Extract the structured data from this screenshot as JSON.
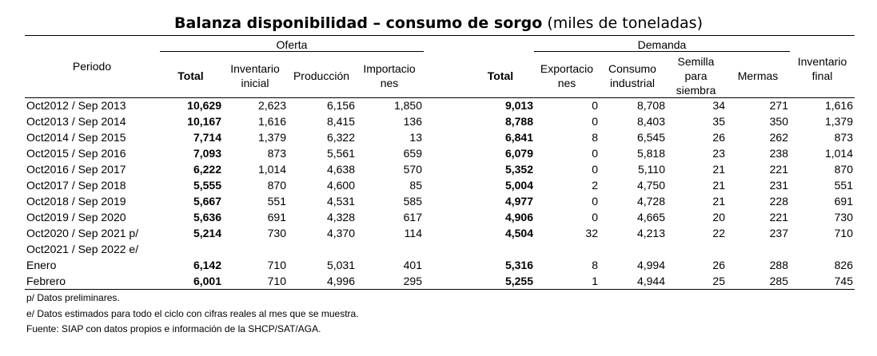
{
  "title": {
    "main": "Balanza disponibilidad – consumo de sorgo",
    "unit": "(miles de toneladas)"
  },
  "groups": {
    "oferta": "Oferta",
    "demanda": "Demanda"
  },
  "headers": {
    "periodo": "Periodo",
    "total": "Total",
    "inventario_inicial": [
      "Inventario",
      "inicial"
    ],
    "produccion": "Producción",
    "importaciones": [
      "Importacio",
      "nes"
    ],
    "total_d": "Total",
    "exportaciones": [
      "Exportacio",
      "nes"
    ],
    "consumo_industrial": [
      "Consumo",
      "industrial"
    ],
    "semilla": [
      "Semilla",
      "para",
      "siembra"
    ],
    "mermas": "Mermas",
    "inventario_final": [
      "Inventario",
      "final"
    ]
  },
  "rows": [
    {
      "periodo": "Oct2012 / Sep 2013",
      "total_oferta": "10,629",
      "inv_inicial": "2,623",
      "produccion": "6,156",
      "importaciones": "1,850",
      "total_demanda": "9,013",
      "exportaciones": "0",
      "consumo": "8,708",
      "semilla": "34",
      "mermas": "271",
      "inv_final": "1,616"
    },
    {
      "periodo": "Oct2013 / Sep 2014",
      "total_oferta": "10,167",
      "inv_inicial": "1,616",
      "produccion": "8,415",
      "importaciones": "136",
      "total_demanda": "8,788",
      "exportaciones": "0",
      "consumo": "8,403",
      "semilla": "35",
      "mermas": "350",
      "inv_final": "1,379"
    },
    {
      "periodo": "Oct2014 / Sep 2015",
      "total_oferta": "7,714",
      "inv_inicial": "1,379",
      "produccion": "6,322",
      "importaciones": "13",
      "total_demanda": "6,841",
      "exportaciones": "8",
      "consumo": "6,545",
      "semilla": "26",
      "mermas": "262",
      "inv_final": "873"
    },
    {
      "periodo": "Oct2015 / Sep 2016",
      "total_oferta": "7,093",
      "inv_inicial": "873",
      "produccion": "5,561",
      "importaciones": "659",
      "total_demanda": "6,079",
      "exportaciones": "0",
      "consumo": "5,818",
      "semilla": "23",
      "mermas": "238",
      "inv_final": "1,014"
    },
    {
      "periodo": "Oct2016 / Sep 2017",
      "total_oferta": "6,222",
      "inv_inicial": "1,014",
      "produccion": "4,638",
      "importaciones": "570",
      "total_demanda": "5,352",
      "exportaciones": "0",
      "consumo": "5,110",
      "semilla": "21",
      "mermas": "221",
      "inv_final": "870"
    },
    {
      "periodo": "Oct2017 / Sep 2018",
      "total_oferta": "5,555",
      "inv_inicial": "870",
      "produccion": "4,600",
      "importaciones": "85",
      "total_demanda": "5,004",
      "exportaciones": "2",
      "consumo": "4,750",
      "semilla": "21",
      "mermas": "231",
      "inv_final": "551"
    },
    {
      "periodo": "Oct2018 / Sep 2019",
      "total_oferta": "5,667",
      "inv_inicial": "551",
      "produccion": "4,531",
      "importaciones": "585",
      "total_demanda": "4,977",
      "exportaciones": "0",
      "consumo": "4,728",
      "semilla": "21",
      "mermas": "228",
      "inv_final": "691"
    },
    {
      "periodo": "Oct2019 / Sep 2020",
      "total_oferta": "5,636",
      "inv_inicial": "691",
      "produccion": "4,328",
      "importaciones": "617",
      "total_demanda": "4,906",
      "exportaciones": "0",
      "consumo": "4,665",
      "semilla": "20",
      "mermas": "221",
      "inv_final": "730"
    },
    {
      "periodo": "Oct2020 / Sep 2021 p/",
      "total_oferta": "5,214",
      "inv_inicial": "730",
      "produccion": "4,370",
      "importaciones": "114",
      "total_demanda": "4,504",
      "exportaciones": "32",
      "consumo": "4,213",
      "semilla": "22",
      "mermas": "237",
      "inv_final": "710"
    },
    {
      "periodo": "Oct2021 / Sep 2022 e/",
      "total_oferta": "",
      "inv_inicial": "",
      "produccion": "",
      "importaciones": "",
      "total_demanda": "",
      "exportaciones": "",
      "consumo": "",
      "semilla": "",
      "mermas": "",
      "inv_final": ""
    },
    {
      "periodo": "Enero",
      "total_oferta": "6,142",
      "inv_inicial": "710",
      "produccion": "5,031",
      "importaciones": "401",
      "total_demanda": "5,316",
      "exportaciones": "8",
      "consumo": "4,994",
      "semilla": "26",
      "mermas": "288",
      "inv_final": "826"
    },
    {
      "periodo": "Febrero",
      "total_oferta": "6,001",
      "inv_inicial": "710",
      "produccion": "4,996",
      "importaciones": "295",
      "total_demanda": "5,255",
      "exportaciones": "1",
      "consumo": "4,944",
      "semilla": "25",
      "mermas": "285",
      "inv_final": "745"
    }
  ],
  "notes": [
    "p/ Datos preliminares.",
    "e/ Datos estimados para todo el ciclo con cifras reales al mes que se muestra.",
    "Fuente: SIAP con datos propios e información de la SHCP/SAT/AGA."
  ]
}
